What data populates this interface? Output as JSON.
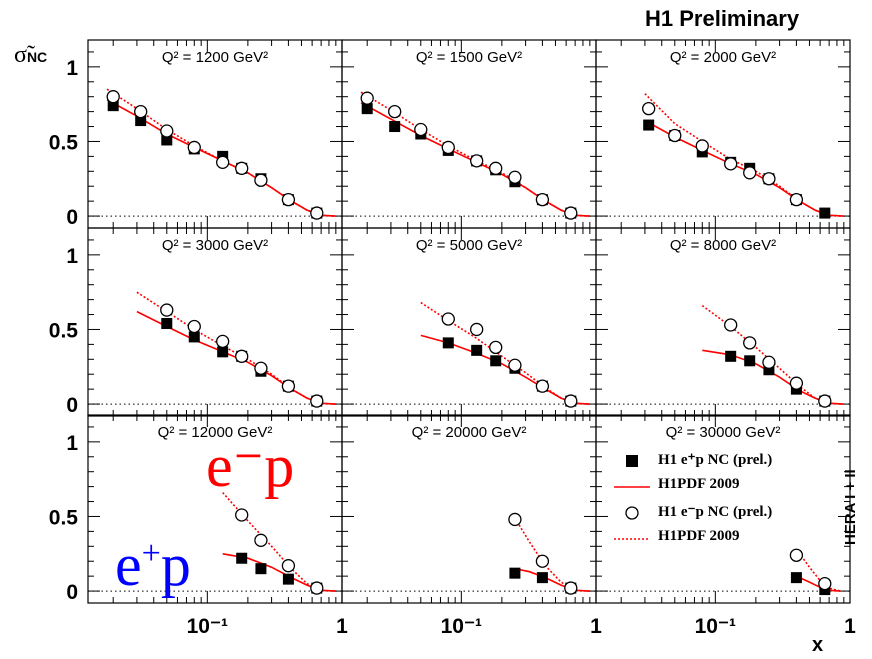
{
  "title": "H1 Preliminary",
  "side_label": "HERA I + II",
  "ylabel": "σ̃",
  "ylabel_sub": "NC",
  "xlabel": "x",
  "annotations": {
    "em_label": "e⁻p",
    "ep_label_base": "e",
    "ep_label_sup": "+",
    "ep_label_end": "p"
  },
  "y_tick_labels": [
    "0",
    "0.5",
    "1"
  ],
  "x_tick_labels": [
    "10⁻¹",
    "1"
  ],
  "colors": {
    "positron": "#ff0000",
    "electron": "#0000ff",
    "axes": "#000000"
  },
  "legend": [
    {
      "label": "H1 e⁺p NC (prel.)",
      "symbol": "filled-square"
    },
    {
      "label": "H1PDF 2009",
      "symbol": "solid-red-line"
    },
    {
      "label": "H1 e⁻p NC (prel.)",
      "symbol": "open-circle"
    },
    {
      "label": "H1PDF 2009",
      "symbol": "dotted-red-line"
    }
  ],
  "chart_data": {
    "type": "scatter",
    "x_scale": "log",
    "xlim": [
      0.013,
      1
    ],
    "ylim": [
      -0.08,
      1.18
    ],
    "grid": false,
    "legend_position": "bottom-right panel",
    "panels": [
      {
        "label": "Q² = 1200 GeV²",
        "ep": {
          "x": [
            0.02,
            0.032,
            0.05,
            0.08,
            0.13,
            0.18,
            0.25,
            0.4,
            0.65
          ],
          "y": [
            0.74,
            0.64,
            0.51,
            0.45,
            0.4,
            0.32,
            0.25,
            0.11,
            0.02
          ]
        },
        "em": {
          "x": [
            0.02,
            0.032,
            0.05,
            0.08,
            0.13,
            0.18,
            0.25,
            0.4,
            0.65
          ],
          "y": [
            0.8,
            0.7,
            0.57,
            0.46,
            0.36,
            0.32,
            0.24,
            0.11,
            0.02
          ]
        },
        "fit_ep": {
          "x": [
            0.018,
            0.03,
            0.05,
            0.08,
            0.13,
            0.2,
            0.3,
            0.42,
            0.55,
            0.7,
            0.9
          ],
          "y": [
            0.78,
            0.67,
            0.55,
            0.46,
            0.37,
            0.29,
            0.19,
            0.1,
            0.04,
            0.005,
            0.0
          ]
        },
        "fit_em": {
          "x": [
            0.018,
            0.03,
            0.05,
            0.08,
            0.13,
            0.2,
            0.3,
            0.42,
            0.55,
            0.7,
            0.9
          ],
          "y": [
            0.85,
            0.72,
            0.58,
            0.47,
            0.37,
            0.29,
            0.19,
            0.1,
            0.04,
            0.005,
            0.0
          ]
        }
      },
      {
        "label": "Q² = 1500 GeV²",
        "ep": {
          "x": [
            0.02,
            0.032,
            0.05,
            0.08,
            0.13,
            0.18,
            0.25,
            0.4,
            0.65
          ],
          "y": [
            0.72,
            0.6,
            0.55,
            0.44,
            0.37,
            0.31,
            0.23,
            0.11,
            0.02
          ]
        },
        "em": {
          "x": [
            0.02,
            0.032,
            0.05,
            0.08,
            0.13,
            0.18,
            0.25,
            0.4,
            0.65
          ],
          "y": [
            0.79,
            0.7,
            0.58,
            0.46,
            0.37,
            0.32,
            0.26,
            0.11,
            0.02
          ]
        },
        "fit_ep": {
          "x": [
            0.018,
            0.03,
            0.05,
            0.08,
            0.13,
            0.2,
            0.3,
            0.42,
            0.55,
            0.7,
            0.9
          ],
          "y": [
            0.76,
            0.65,
            0.54,
            0.45,
            0.36,
            0.28,
            0.19,
            0.1,
            0.04,
            0.005,
            0.0
          ]
        },
        "fit_em": {
          "x": [
            0.018,
            0.03,
            0.05,
            0.08,
            0.13,
            0.2,
            0.3,
            0.42,
            0.55,
            0.7,
            0.9
          ],
          "y": [
            0.83,
            0.71,
            0.58,
            0.47,
            0.37,
            0.29,
            0.19,
            0.1,
            0.04,
            0.005,
            0.0
          ]
        }
      },
      {
        "label": "Q² = 2000 GeV²",
        "ep": {
          "x": [
            0.032,
            0.05,
            0.08,
            0.13,
            0.18,
            0.25,
            0.4,
            0.65
          ],
          "y": [
            0.61,
            0.54,
            0.43,
            0.36,
            0.32,
            0.25,
            0.11,
            0.02
          ]
        },
        "em": {
          "x": [
            0.032,
            0.05,
            0.08,
            0.13,
            0.18,
            0.25,
            0.4
          ],
          "y": [
            0.72,
            0.54,
            0.47,
            0.35,
            0.29,
            0.25,
            0.11
          ]
        },
        "fit_ep": {
          "x": [
            0.03,
            0.05,
            0.08,
            0.13,
            0.2,
            0.3,
            0.42,
            0.55,
            0.7,
            0.9
          ],
          "y": [
            0.64,
            0.53,
            0.44,
            0.35,
            0.28,
            0.19,
            0.1,
            0.04,
            0.005,
            0.0
          ]
        },
        "fit_em": {
          "x": [
            0.03,
            0.05,
            0.08,
            0.13,
            0.2,
            0.3,
            0.42,
            0.55,
            0.7,
            0.9
          ],
          "y": [
            0.82,
            0.62,
            0.5,
            0.38,
            0.3,
            0.2,
            0.1,
            0.04,
            0.005,
            0.0
          ]
        }
      },
      {
        "label": "Q² = 3000 GeV²",
        "ep": {
          "x": [
            0.05,
            0.08,
            0.13,
            0.18,
            0.25,
            0.4,
            0.65
          ],
          "y": [
            0.54,
            0.45,
            0.35,
            0.32,
            0.22,
            0.12,
            0.02
          ]
        },
        "em": {
          "x": [
            0.05,
            0.08,
            0.13,
            0.18,
            0.25,
            0.4,
            0.65
          ],
          "y": [
            0.63,
            0.52,
            0.42,
            0.32,
            0.24,
            0.12,
            0.02
          ]
        },
        "fit_ep": {
          "x": [
            0.03,
            0.05,
            0.08,
            0.13,
            0.2,
            0.3,
            0.42,
            0.55,
            0.7,
            0.9
          ],
          "y": [
            0.62,
            0.52,
            0.43,
            0.35,
            0.28,
            0.19,
            0.1,
            0.04,
            0.005,
            0.0
          ]
        },
        "fit_em": {
          "x": [
            0.03,
            0.05,
            0.08,
            0.13,
            0.2,
            0.3,
            0.42,
            0.55,
            0.7,
            0.9
          ],
          "y": [
            0.75,
            0.62,
            0.5,
            0.39,
            0.3,
            0.2,
            0.1,
            0.04,
            0.005,
            0.0
          ]
        }
      },
      {
        "label": "Q² = 5000 GeV²",
        "ep": {
          "x": [
            0.08,
            0.13,
            0.18,
            0.25,
            0.4,
            0.65
          ],
          "y": [
            0.41,
            0.36,
            0.29,
            0.24,
            0.12,
            0.02
          ]
        },
        "em": {
          "x": [
            0.08,
            0.13,
            0.18,
            0.25,
            0.4,
            0.65
          ],
          "y": [
            0.57,
            0.5,
            0.38,
            0.26,
            0.12,
            0.02
          ]
        },
        "fit_ep": {
          "x": [
            0.05,
            0.08,
            0.13,
            0.2,
            0.3,
            0.42,
            0.55,
            0.7,
            0.9
          ],
          "y": [
            0.46,
            0.41,
            0.34,
            0.27,
            0.18,
            0.1,
            0.04,
            0.005,
            0.0
          ]
        },
        "fit_em": {
          "x": [
            0.05,
            0.08,
            0.13,
            0.2,
            0.3,
            0.42,
            0.55,
            0.7,
            0.9
          ],
          "y": [
            0.68,
            0.56,
            0.44,
            0.32,
            0.21,
            0.11,
            0.04,
            0.005,
            0.0
          ]
        }
      },
      {
        "label": "Q² = 8000 GeV²",
        "ep": {
          "x": [
            0.13,
            0.18,
            0.25,
            0.4,
            0.65
          ],
          "y": [
            0.32,
            0.29,
            0.23,
            0.1,
            0.02
          ]
        },
        "em": {
          "x": [
            0.13,
            0.18,
            0.25,
            0.4,
            0.65
          ],
          "y": [
            0.53,
            0.41,
            0.28,
            0.14,
            0.02
          ]
        },
        "fit_ep": {
          "x": [
            0.08,
            0.13,
            0.2,
            0.3,
            0.42,
            0.55,
            0.7,
            0.9
          ],
          "y": [
            0.36,
            0.33,
            0.27,
            0.18,
            0.09,
            0.04,
            0.005,
            0.0
          ]
        },
        "fit_em": {
          "x": [
            0.08,
            0.13,
            0.2,
            0.3,
            0.42,
            0.55,
            0.7,
            0.9
          ],
          "y": [
            0.66,
            0.52,
            0.38,
            0.24,
            0.12,
            0.04,
            0.005,
            0.0
          ]
        }
      },
      {
        "label": "Q² = 12000 GeV²",
        "ep": {
          "x": [
            0.18,
            0.25,
            0.4,
            0.65
          ],
          "y": [
            0.22,
            0.15,
            0.08,
            0.02
          ]
        },
        "em": {
          "x": [
            0.18,
            0.25,
            0.4,
            0.65
          ],
          "y": [
            0.51,
            0.34,
            0.17,
            0.02
          ]
        },
        "fit_ep": {
          "x": [
            0.13,
            0.2,
            0.3,
            0.42,
            0.55,
            0.7,
            0.9
          ],
          "y": [
            0.25,
            0.22,
            0.16,
            0.09,
            0.04,
            0.005,
            0.0
          ]
        },
        "fit_em": {
          "x": [
            0.13,
            0.2,
            0.3,
            0.42,
            0.55,
            0.7,
            0.9
          ],
          "y": [
            0.66,
            0.47,
            0.3,
            0.15,
            0.05,
            0.005,
            0.0
          ]
        }
      },
      {
        "label": "Q² = 20000 GeV²",
        "ep": {
          "x": [
            0.25,
            0.4,
            0.65
          ],
          "y": [
            0.12,
            0.09,
            0.02
          ]
        },
        "em": {
          "x": [
            0.25,
            0.4,
            0.65
          ],
          "y": [
            0.48,
            0.2,
            0.02
          ]
        },
        "fit_ep": {
          "x": [
            0.25,
            0.32,
            0.42,
            0.55,
            0.7,
            0.9
          ],
          "y": [
            0.15,
            0.13,
            0.09,
            0.04,
            0.005,
            0.0
          ]
        },
        "fit_em": {
          "x": [
            0.25,
            0.32,
            0.42,
            0.55,
            0.7,
            0.9
          ],
          "y": [
            0.49,
            0.33,
            0.17,
            0.06,
            0.005,
            0.0
          ]
        }
      },
      {
        "label": "Q² = 30000 GeV²",
        "ep": {
          "x": [
            0.4,
            0.65
          ],
          "y": [
            0.09,
            0.01
          ]
        },
        "em": {
          "x": [
            0.4,
            0.65
          ],
          "y": [
            0.24,
            0.05
          ]
        },
        "fit_ep": {
          "x": [
            0.4,
            0.5,
            0.6,
            0.7,
            0.85
          ],
          "y": [
            0.1,
            0.06,
            0.025,
            0.005,
            0.0
          ]
        },
        "fit_em": {
          "x": [
            0.4,
            0.5,
            0.6,
            0.7,
            0.85
          ],
          "y": [
            0.28,
            0.16,
            0.07,
            0.02,
            0.0
          ]
        }
      }
    ]
  }
}
